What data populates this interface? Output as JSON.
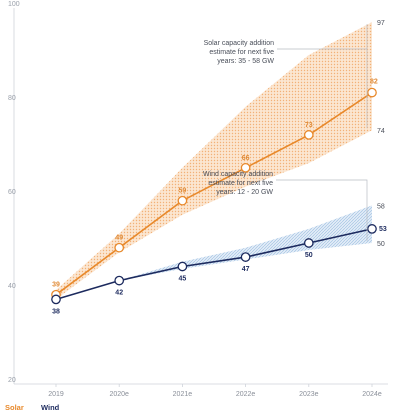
{
  "chart_data": {
    "type": "line",
    "categories": [
      "2019",
      "2020e",
      "2021e",
      "2022e",
      "2023e",
      "2024e"
    ],
    "ylim": [
      20,
      100
    ],
    "yticks": [
      "20",
      "40",
      "60",
      "80",
      "100"
    ],
    "grid": false,
    "legend_position": "bottom-left",
    "series": [
      {
        "name": "Solar",
        "color": "#e8892b",
        "label_color": "#e08a35",
        "values": [
          39,
          49,
          59,
          66,
          73,
          82
        ],
        "labels": [
          "39",
          "49",
          "59",
          "66",
          "73",
          "82"
        ],
        "band_low": [
          38,
          48,
          56,
          62,
          67,
          74
        ],
        "band_high": [
          40,
          52,
          66,
          79,
          90,
          97
        ],
        "band_color": "#f6c9a0"
      },
      {
        "name": "Wind",
        "color": "#1c2a5e",
        "label_color": "#1c2a5e",
        "values": [
          38,
          42,
          45,
          47,
          50,
          53
        ],
        "labels": [
          "38",
          "42",
          "45",
          "47",
          "50",
          "53"
        ],
        "band_low": [
          38,
          42,
          44.5,
          46.5,
          48.5,
          50
        ],
        "band_high": [
          38,
          42,
          46,
          49,
          53,
          58
        ],
        "band_color": "#b9d4ee"
      }
    ],
    "annotations": [
      {
        "series": "Solar",
        "lines": [
          "Solar capacity addition",
          "estimate for next five",
          "years: 35 - 58 GW"
        ],
        "range_high_label": "97",
        "range_low_label": "74"
      },
      {
        "series": "Wind",
        "lines": [
          "Wind capacity addition",
          "estimate for next five",
          "years: 12 - 20 GW"
        ],
        "range_high_label": "58",
        "range_low_label": "50"
      }
    ]
  }
}
